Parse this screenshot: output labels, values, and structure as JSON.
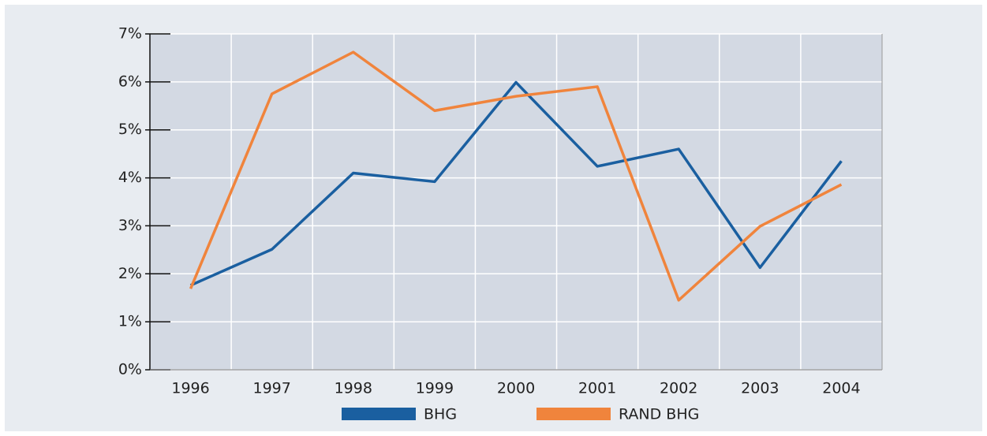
{
  "chart_data": {
    "type": "line",
    "categories": [
      "1996",
      "1997",
      "1998",
      "1999",
      "2000",
      "2001",
      "2002",
      "2003",
      "2004"
    ],
    "series": [
      {
        "name": "BHG",
        "color": "#1a5fa0",
        "values": [
          1.76,
          2.51,
          4.1,
          3.92,
          5.99,
          4.24,
          4.6,
          2.13,
          4.35
        ]
      },
      {
        "name": "RAND BHG",
        "color": "#f0843c",
        "values": [
          1.69,
          5.75,
          6.62,
          5.4,
          5.7,
          5.9,
          1.45,
          2.99,
          3.86
        ]
      }
    ],
    "ylim": [
      0,
      7
    ],
    "yticks": [
      {
        "value": 0,
        "label": "0%"
      },
      {
        "value": 1,
        "label": "1%"
      },
      {
        "value": 2,
        "label": "2%"
      },
      {
        "value": 3,
        "label": "3%"
      },
      {
        "value": 4,
        "label": "4%"
      },
      {
        "value": 5,
        "label": "5%"
      },
      {
        "value": 6,
        "label": "6%"
      },
      {
        "value": 7,
        "label": "7%"
      }
    ],
    "grid": true
  }
}
